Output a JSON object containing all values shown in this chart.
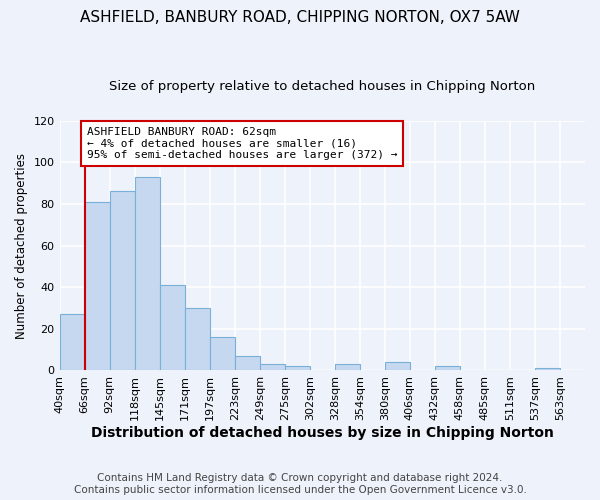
{
  "title": "ASHFIELD, BANBURY ROAD, CHIPPING NORTON, OX7 5AW",
  "subtitle": "Size of property relative to detached houses in Chipping Norton",
  "xlabel": "Distribution of detached houses by size in Chipping Norton",
  "ylabel": "Number of detached properties",
  "bin_labels": [
    "40sqm",
    "66sqm",
    "92sqm",
    "118sqm",
    "145sqm",
    "171sqm",
    "197sqm",
    "223sqm",
    "249sqm",
    "275sqm",
    "302sqm",
    "328sqm",
    "354sqm",
    "380sqm",
    "406sqm",
    "432sqm",
    "458sqm",
    "485sqm",
    "511sqm",
    "537sqm",
    "563sqm"
  ],
  "bar_values": [
    27,
    81,
    86,
    93,
    41,
    30,
    16,
    7,
    3,
    2,
    0,
    3,
    0,
    4,
    0,
    2,
    0,
    0,
    0,
    1,
    0
  ],
  "bar_color": "#c5d8f0",
  "bar_edge_color": "#7ab0d8",
  "annotation_box_text": "ASHFIELD BANBURY ROAD: 62sqm\n← 4% of detached houses are smaller (16)\n95% of semi-detached houses are larger (372) →",
  "annotation_box_color": "#ffffff",
  "annotation_box_edge_color": "#cc0000",
  "vline_color": "#cc0000",
  "ylim": [
    0,
    120
  ],
  "yticks": [
    0,
    20,
    40,
    60,
    80,
    100,
    120
  ],
  "footer_line1": "Contains HM Land Registry data © Crown copyright and database right 2024.",
  "footer_line2": "Contains public sector information licensed under the Open Government Licence v3.0.",
  "title_fontsize": 11,
  "subtitle_fontsize": 9.5,
  "xlabel_fontsize": 10,
  "ylabel_fontsize": 8.5,
  "tick_fontsize": 8,
  "annotation_fontsize": 8,
  "footer_fontsize": 7.5,
  "background_color": "#eef2fa"
}
